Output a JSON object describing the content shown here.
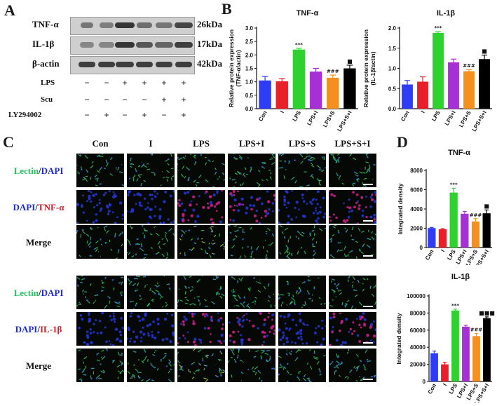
{
  "panels": {
    "a": "A",
    "b": "B",
    "c": "C",
    "d": "D"
  },
  "western_blot": {
    "bands": [
      {
        "protein": "TNF-α",
        "size": "26kDa"
      },
      {
        "protein": "IL-1β",
        "size": "17kDa"
      },
      {
        "protein": "β-actin",
        "size": "42kDa"
      }
    ],
    "conditions": [
      {
        "label": "LPS",
        "signs": [
          "−",
          "−",
          "+",
          "+",
          "+",
          "+"
        ]
      },
      {
        "label": "Scu",
        "signs": [
          "−",
          "−",
          "−",
          "−",
          "+",
          "+"
        ]
      },
      {
        "label": "LY294002",
        "signs": [
          "−",
          "+",
          "−",
          "+",
          "−",
          "+"
        ]
      }
    ]
  },
  "microscopy": {
    "columns": [
      "Con",
      "I",
      "LPS",
      "LPS+I",
      "LPS+S",
      "LPS+S+I"
    ],
    "row_labels": [
      {
        "first": "Lectin",
        "sep": "/",
        "second": "DAPI",
        "c1": "#22c55e",
        "c2": "#1d2bd8"
      },
      {
        "first": "DAPI",
        "sep": "/",
        "second": "TNF-α",
        "c1": "#1d2bd8",
        "c2": "#d61f2a"
      },
      {
        "first": "Merge",
        "sep": "",
        "second": "",
        "c1": "#111111",
        "c2": "#111111"
      },
      {
        "first": "Lectin",
        "sep": "/",
        "second": "DAPI",
        "c1": "#22c55e",
        "c2": "#1d2bd8"
      },
      {
        "first": "DAPI",
        "sep": "/",
        "second": "IL-1β",
        "c1": "#1d2bd8",
        "c2": "#d61f2a"
      },
      {
        "first": "Merge",
        "sep": "",
        "second": "",
        "c1": "#111111",
        "c2": "#111111"
      }
    ]
  },
  "colors": [
    "#2f3cf5",
    "#e8202a",
    "#2fd12f",
    "#a62fd6",
    "#f5901e",
    "#000000"
  ],
  "chart_data": [
    {
      "type": "bar",
      "title": "TNF-α",
      "ylabel": "Relative protein expression\n(TNF-α/actin)",
      "categories": [
        "Con",
        "I",
        "LPS",
        "LPS+I",
        "LPS+S",
        "LPS+S+I"
      ],
      "values": [
        1.05,
        1.02,
        2.2,
        1.38,
        1.15,
        1.5
      ],
      "errors": [
        0.15,
        0.1,
        0.05,
        0.12,
        0.1,
        0.12
      ],
      "annotations": [
        "",
        "",
        "***",
        "",
        "###",
        "■"
      ],
      "ylim": [
        0,
        3.0
      ],
      "yticks": [
        "0.0",
        "0.5",
        "1.0",
        "1.5",
        "2.0",
        "2.5",
        "3.0"
      ]
    },
    {
      "type": "bar",
      "title": "IL-1β",
      "ylabel": "Relative protein expression\n(IL-1β/actin)",
      "categories": [
        "Con",
        "I",
        "LPS",
        "LPS+I",
        "LPS+S",
        "LPS+S+I"
      ],
      "values": [
        0.6,
        0.67,
        1.88,
        1.15,
        0.93,
        1.23
      ],
      "errors": [
        0.1,
        0.12,
        0.03,
        0.08,
        0.04,
        0.1
      ],
      "annotations": [
        "",
        "",
        "***",
        "",
        "###",
        "■"
      ],
      "ylim": [
        0,
        2.0
      ],
      "yticks": [
        "0.0",
        "0.5",
        "1.0",
        "1.5",
        "2.0"
      ]
    },
    {
      "type": "bar",
      "title": "TNF-α",
      "ylabel": "Integrated density",
      "categories": [
        "Con",
        "I",
        "LPS",
        "LPS+I",
        "LPS+S",
        "LPS+S+I"
      ],
      "values": [
        2020,
        1900,
        5700,
        3500,
        2700,
        3550
      ],
      "errors": [
        60,
        60,
        450,
        250,
        300,
        350
      ],
      "annotations": [
        "",
        "",
        "***",
        "",
        "###",
        "■"
      ],
      "ylim": [
        0,
        8000
      ],
      "yticks": [
        "0",
        "2000",
        "4000",
        "6000",
        "8000"
      ]
    },
    {
      "type": "bar",
      "title": "IL-1β",
      "ylabel": "Integrated density",
      "categories": [
        "Con",
        "I",
        "LPS",
        "LPS+I",
        "LPS+S",
        "LPS+S+I"
      ],
      "values": [
        33000,
        20000,
        83000,
        64000,
        53000,
        74000
      ],
      "errors": [
        2500,
        2500,
        1500,
        1500,
        3000,
        1500
      ],
      "annotations": [
        "",
        "",
        "***",
        "",
        "###",
        "■■■"
      ],
      "ylim": [
        0,
        100000
      ],
      "yticks": [
        "0",
        "20000",
        "40000",
        "60000",
        "80000",
        "100000"
      ]
    }
  ]
}
